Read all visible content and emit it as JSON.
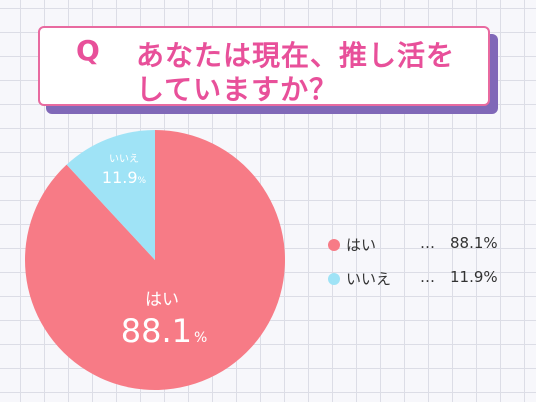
{
  "title": {
    "q": "Q",
    "line1": "あなたは現在、推し活を",
    "line2": "していますか？"
  },
  "colors": {
    "yes": "#f77b86",
    "no": "#9fe3f6",
    "title": "#e8509a",
    "title_border": "#e86aa0",
    "title_shadow": "#8068b8"
  },
  "chart_data": {
    "type": "pie",
    "categories": [
      "はい",
      "いいえ"
    ],
    "values": [
      88.1,
      11.9
    ],
    "unit": "%",
    "title": "Q あなたは現在、推し活をしていますか？",
    "legend": "right"
  },
  "pie_labels": [
    {
      "label": "はい",
      "value": "88.1",
      "unit": "%"
    },
    {
      "label": "いいえ",
      "value": "11.9",
      "unit": "%"
    }
  ],
  "legend": [
    {
      "label": "はい",
      "dots": "…",
      "value": "88.1%"
    },
    {
      "label": "いいえ",
      "dots": "…",
      "value": "11.9%"
    }
  ]
}
